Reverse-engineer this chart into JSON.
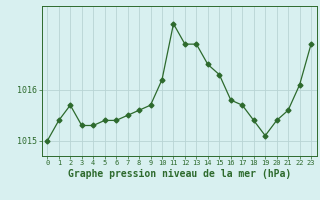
{
  "x": [
    0,
    1,
    2,
    3,
    4,
    5,
    6,
    7,
    8,
    9,
    10,
    11,
    12,
    13,
    14,
    15,
    16,
    17,
    18,
    19,
    20,
    21,
    22,
    23
  ],
  "y": [
    1015.0,
    1015.4,
    1015.7,
    1015.3,
    1015.3,
    1015.4,
    1015.4,
    1015.5,
    1015.6,
    1015.7,
    1016.2,
    1017.3,
    1016.9,
    1016.9,
    1016.5,
    1016.3,
    1015.8,
    1015.7,
    1015.4,
    1015.1,
    1015.4,
    1015.6,
    1016.1,
    1016.9
  ],
  "line_color": "#2d6a2d",
  "marker": "D",
  "marker_size": 2.5,
  "bg_color": "#d8f0f0",
  "grid_color": "#b8d4d4",
  "yticks": [
    1015,
    1016
  ],
  "xlabel": "Graphe pression niveau de la mer (hPa)",
  "xlabel_fontsize": 7,
  "ylim_min": 1014.7,
  "ylim_max": 1017.65,
  "xlim_min": -0.5,
  "xlim_max": 23.5
}
